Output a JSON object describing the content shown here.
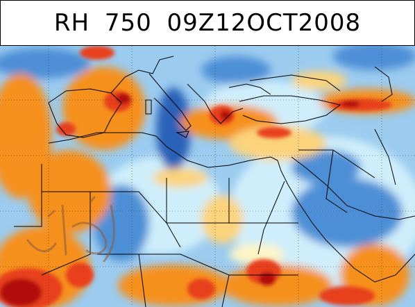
{
  "title": "RH  750  09Z12OCT2008",
  "map": {
    "field": "RH",
    "level": "750",
    "palette": {
      "very_dry": "#b20f0f",
      "dry": "#e8401a",
      "moderate_dry": "#f6901f",
      "slight_dry": "#fbd37c",
      "neutral": "#fdf5c6",
      "slight_moist": "#cfeefb",
      "moist": "#9bcbef",
      "very_moist": "#4e8fd6",
      "saturated": "#2a62b8",
      "coastline": "#000000",
      "gridline": "#333333"
    },
    "watermark_color": "#8b5a3c"
  }
}
